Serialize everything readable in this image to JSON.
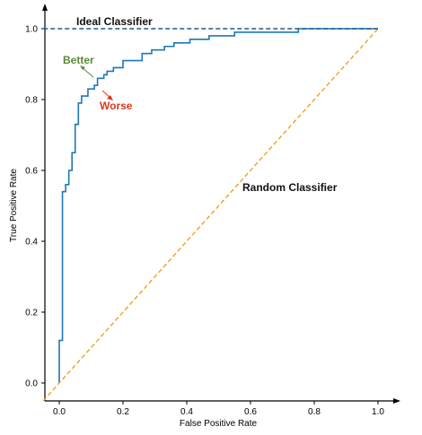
{
  "chart_data": {
    "type": "line",
    "title": "",
    "xlabel": "False Positive Rate",
    "ylabel": "True Positive Rate",
    "xlim": [
      -0.05,
      1.05
    ],
    "ylim": [
      -0.05,
      1.05
    ],
    "xticks": [
      "0.0",
      "0.2",
      "0.4",
      "0.6",
      "0.8",
      "1.0"
    ],
    "yticks": [
      "0.0",
      "0.2",
      "0.4",
      "0.6",
      "0.8",
      "1.0"
    ],
    "grid": false,
    "legend": "none",
    "series": [
      {
        "style": "step",
        "color": "#1f77b4",
        "x": [
          0.0,
          0.0,
          0.01,
          0.01,
          0.02,
          0.02,
          0.03,
          0.03,
          0.04,
          0.04,
          0.05,
          0.05,
          0.06,
          0.06,
          0.07,
          0.07,
          0.09,
          0.09,
          0.11,
          0.11,
          0.12,
          0.12,
          0.14,
          0.14,
          0.15,
          0.15,
          0.17,
          0.17,
          0.2,
          0.2,
          0.26,
          0.26,
          0.29,
          0.29,
          0.33,
          0.33,
          0.36,
          0.36,
          0.41,
          0.41,
          0.47,
          0.47,
          0.55,
          0.55,
          0.75,
          0.75,
          1.0
        ],
        "y": [
          0.0,
          0.12,
          0.12,
          0.54,
          0.54,
          0.56,
          0.56,
          0.6,
          0.6,
          0.65,
          0.65,
          0.73,
          0.73,
          0.79,
          0.79,
          0.81,
          0.81,
          0.83,
          0.83,
          0.84,
          0.84,
          0.86,
          0.86,
          0.87,
          0.87,
          0.88,
          0.88,
          0.89,
          0.89,
          0.91,
          0.91,
          0.93,
          0.93,
          0.94,
          0.94,
          0.95,
          0.95,
          0.96,
          0.96,
          0.97,
          0.97,
          0.98,
          0.98,
          0.99,
          0.99,
          1.0,
          1.0
        ]
      },
      {
        "style": "dashed",
        "color": "#f0a020",
        "x": [
          -0.05,
          1.0
        ],
        "y": [
          -0.05,
          1.0
        ]
      },
      {
        "style": "dashed",
        "color": "#1f5a8a",
        "x": [
          -0.05,
          1.0
        ],
        "y": [
          1.0,
          1.0
        ]
      }
    ],
    "annotations": [
      {
        "text": "Ideal Classifier",
        "color": "#111111"
      },
      {
        "text": "Random Classifier",
        "color": "#111111"
      },
      {
        "text": "Better",
        "color": "#5a8a3a"
      },
      {
        "text": "Worse",
        "color": "#d63a1e"
      }
    ]
  }
}
